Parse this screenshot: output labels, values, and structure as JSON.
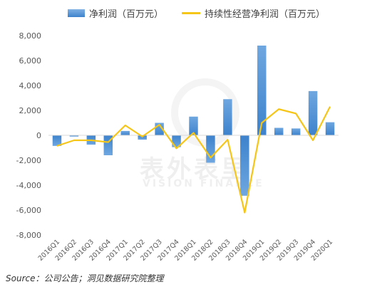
{
  "chart_data": {
    "type": "bar",
    "categories": [
      "2016Q1",
      "2016Q2",
      "2016Q3",
      "2016Q4",
      "2017Q1",
      "2017Q2",
      "2017Q3",
      "2017Q4",
      "2018Q1",
      "2018Q2",
      "2018Q3",
      "2018Q4",
      "2019Q1",
      "2019Q2",
      "2019Q3",
      "2019Q4",
      "2020Q1"
    ],
    "series": [
      {
        "name": "净利润（百万元）",
        "type": "bar",
        "color": "#5b9bd5",
        "values": [
          -850,
          -100,
          -750,
          -1600,
          350,
          -350,
          1000,
          -950,
          1500,
          -2200,
          2900,
          -4850,
          7200,
          600,
          550,
          3550,
          1050
        ]
      },
      {
        "name": "持续性经营净利润（百万元）",
        "type": "line",
        "color": "#f5c518",
        "values": [
          -850,
          -400,
          -400,
          -550,
          800,
          -100,
          850,
          -1050,
          200,
          -1800,
          -350,
          -6200,
          1000,
          2100,
          1750,
          -400,
          2300
        ]
      }
    ],
    "yticks": [
      8000,
      6000,
      4000,
      2000,
      0,
      -2000,
      -4000,
      -6000,
      -8000
    ],
    "ytick_labels": [
      "8,000",
      "6,000",
      "4,000",
      "2,000",
      "0",
      "-2,000",
      "-4,000",
      "-6,000",
      "-8,000"
    ],
    "ylim": [
      -8000,
      8000
    ],
    "legend_position": "top",
    "grid": false
  },
  "source_text": "Source：公司公告；洞见数据研究院整理",
  "watermark": {
    "text": "表外表里",
    "subtext": "VISION FINANCE"
  }
}
